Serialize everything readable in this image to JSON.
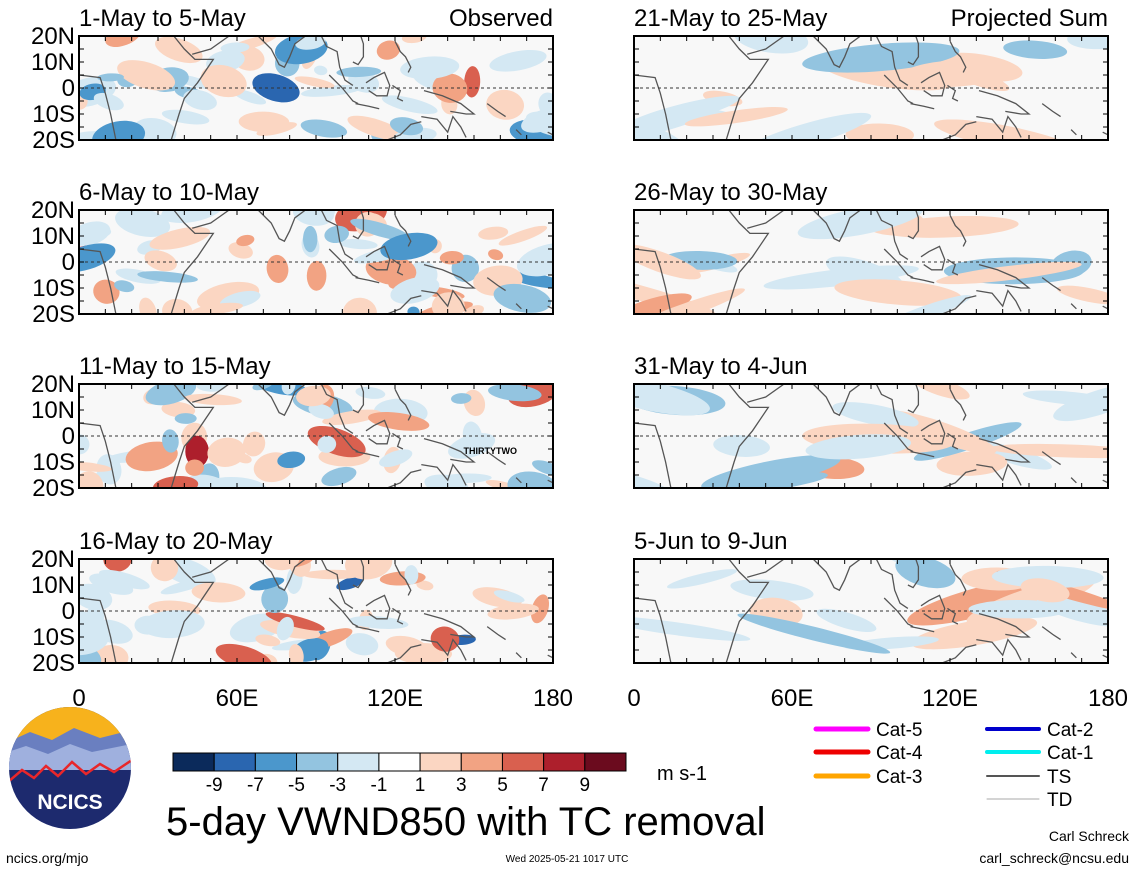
{
  "chart_data": {
    "type": "heatmap",
    "title": "5-day VWND850 with TC removal",
    "units": "m s-1",
    "colorbar": {
      "tick_labels": [
        "-9",
        "-7",
        "-5",
        "-3",
        "-1",
        "1",
        "3",
        "5",
        "7",
        "9"
      ],
      "colors": [
        "#0b2a5b",
        "#2a66b0",
        "#4b97cc",
        "#93c4e0",
        "#d4e8f3",
        "#ffffff",
        "#fbd6c2",
        "#f2a383",
        "#d9604f",
        "#ad1f2c",
        "#6b0b1e"
      ]
    },
    "x_axis": {
      "tick_labels": [
        "0",
        "60E",
        "120E",
        "180"
      ],
      "range": [
        0,
        180
      ]
    },
    "y_axis": {
      "tick_labels": [
        "20N",
        "10N",
        "0",
        "10S",
        "20S"
      ],
      "range": [
        -20,
        20
      ]
    },
    "panels": [
      {
        "title": "1-May to 5-May",
        "corner_label": "Observed",
        "show_y_labels": true
      },
      {
        "title": "6-May to 10-May",
        "corner_label": "",
        "show_y_labels": true
      },
      {
        "title": "11-May to 15-May",
        "corner_label": "",
        "show_y_labels": true,
        "storm_label": "THIRTYTWO"
      },
      {
        "title": "16-May to 20-May",
        "corner_label": "",
        "show_y_labels": true
      },
      {
        "title": "21-May to 25-May",
        "corner_label": "Projected Sum",
        "show_y_labels": false
      },
      {
        "title": "26-May to 30-May",
        "corner_label": "",
        "show_y_labels": false
      },
      {
        "title": "31-May to 4-Jun",
        "corner_label": "",
        "show_y_labels": false
      },
      {
        "title": "5-Jun to 9-Jun",
        "corner_label": "",
        "show_y_labels": false
      }
    ],
    "track_legend": [
      {
        "label": "Cat-5",
        "color": "#ff00ff"
      },
      {
        "label": "Cat-4",
        "color": "#ee0000"
      },
      {
        "label": "Cat-3",
        "color": "#ffa500"
      },
      {
        "label": "Cat-2",
        "color": "#0000cc"
      },
      {
        "label": "Cat-1",
        "color": "#00eeee"
      },
      {
        "label": "TS",
        "color": "#555555"
      },
      {
        "label": "TD",
        "color": "#aaaaaa"
      }
    ]
  },
  "logo": {
    "text": "NCICS"
  },
  "footer": {
    "url": "ncics.org/mjo",
    "timestamp": "Wed 2025-05-21 1017 UTC",
    "author": "Carl Schreck",
    "email": "carl_schreck@ncsu.edu"
  }
}
